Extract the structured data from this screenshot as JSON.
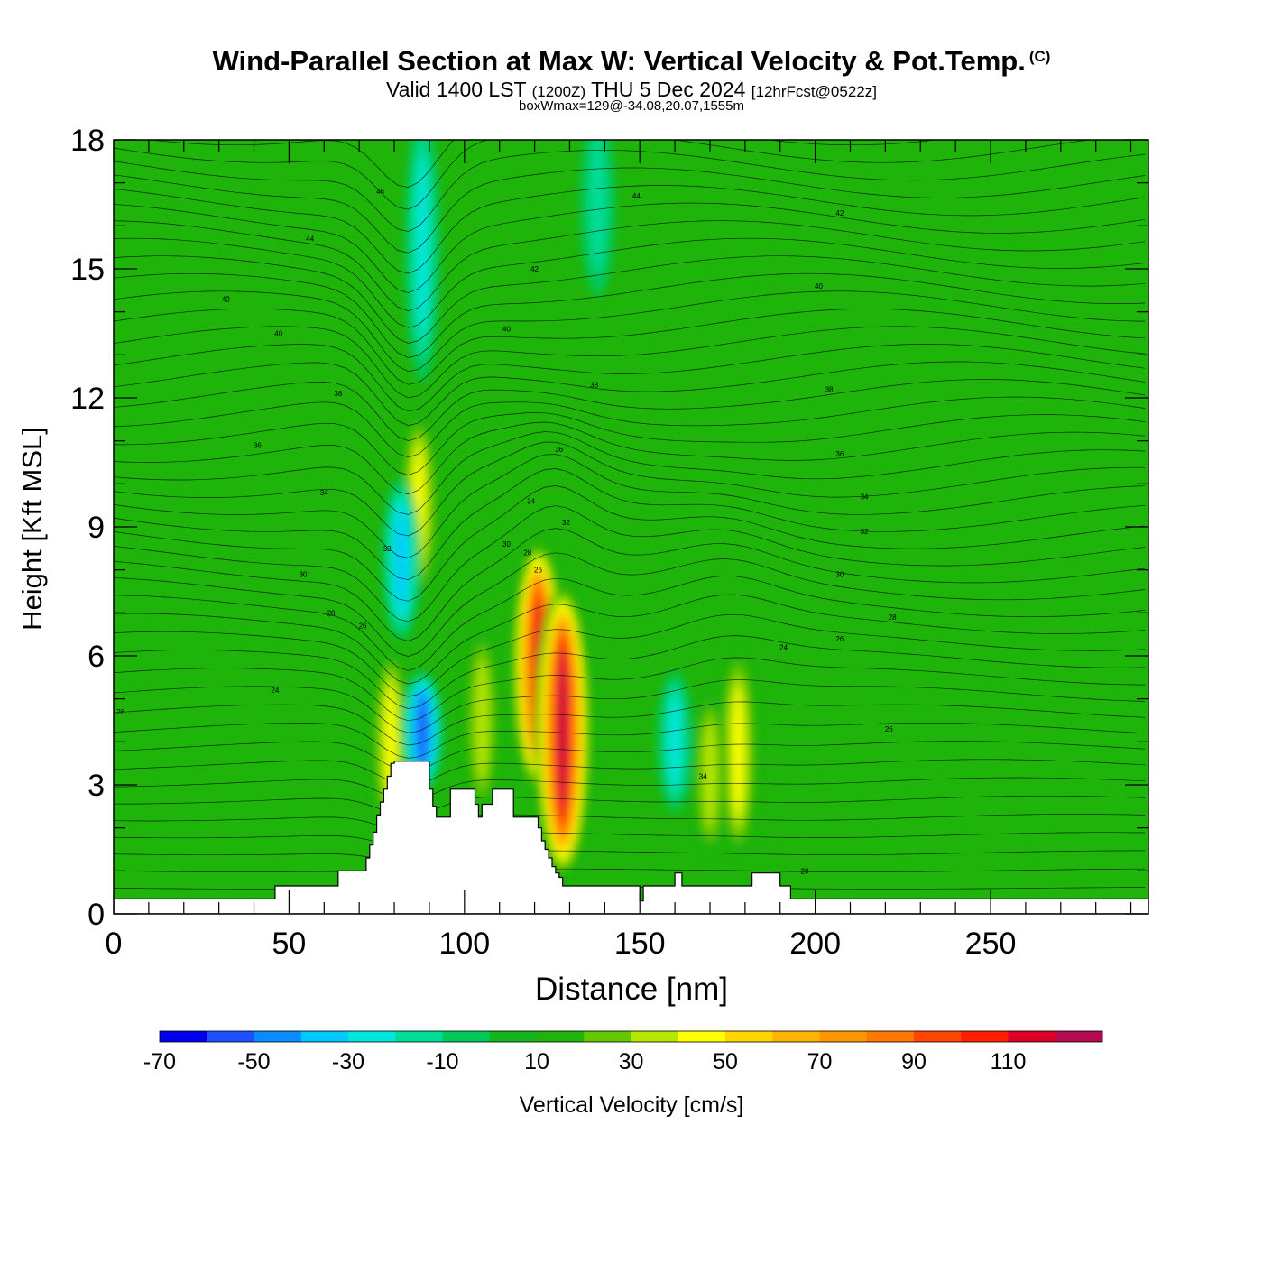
{
  "header": {
    "title": "Wind-Parallel Section at Max W: Vertical Velocity & Pot.Temp.",
    "copyright_mark": "(C)",
    "subtitle": {
      "valid": "Valid 1400 LST",
      "utc": "(1200Z)",
      "date": "THU 5 Dec 2024",
      "forecast": "[12hrFcst@0522z]"
    },
    "info": "boxWmax=129@-34.08,20.07,1555m"
  },
  "chart_data": {
    "type": "heatmap",
    "xlabel": "Distance [nm]",
    "ylabel": "Height [Kft MSL]",
    "xlim": [
      0,
      295
    ],
    "ylim": [
      0,
      18
    ],
    "x_ticks": [
      0,
      50,
      100,
      150,
      200,
      250
    ],
    "y_ticks": [
      0,
      3,
      6,
      9,
      12,
      15,
      18
    ],
    "colorbar": {
      "label": "Vertical Velocity [cm/s]",
      "levels": [
        -75,
        -65,
        -55,
        -45,
        -35,
        -25,
        -15,
        -5,
        5,
        15,
        25,
        35,
        45,
        55,
        65,
        75,
        85,
        95,
        105,
        115,
        125
      ],
      "colors": [
        "#0000ee",
        "#1e50ff",
        "#0a8cff",
        "#00c8ff",
        "#00e6dc",
        "#00dc96",
        "#00c85a",
        "#14b41e",
        "#1eb40a",
        "#64c800",
        "#b4e600",
        "#ffff00",
        "#ffd700",
        "#ffb400",
        "#ff9600",
        "#ff7800",
        "#ff4600",
        "#ff1e00",
        "#dc0028",
        "#b40a50"
      ],
      "tick_labels": [
        "-70",
        "-50",
        "-30",
        "-10",
        "10",
        "30",
        "50",
        "70",
        "90",
        "110"
      ]
    },
    "max_w_cm_s": 129,
    "updraft_cores": [
      {
        "x": 121,
        "ylow": 3.5,
        "yhigh": 8.0,
        "peak": 112
      },
      {
        "x": 128,
        "ylow": 1.5,
        "yhigh": 7.0,
        "peak": 129
      },
      {
        "x": 178,
        "ylow": 2.0,
        "yhigh": 5.5,
        "peak": 48
      },
      {
        "x": 170,
        "ylow": 2.0,
        "yhigh": 4.5,
        "peak": 38
      },
      {
        "x": 79,
        "ylow": 2.5,
        "yhigh": 5.5,
        "peak": 45
      },
      {
        "x": 87,
        "ylow": 8.0,
        "yhigh": 11.0,
        "peak": 45
      },
      {
        "x": 105,
        "ylow": 3.0,
        "yhigh": 6.0,
        "peak": 35
      }
    ],
    "downdraft_cores": [
      {
        "x": 88,
        "ylow": 3.5,
        "yhigh": 5.0,
        "peak": -62
      },
      {
        "x": 82,
        "ylow": 7.0,
        "yhigh": 9.5,
        "peak": -48
      },
      {
        "x": 160,
        "ylow": 3.0,
        "yhigh": 5.0,
        "peak": -30
      },
      {
        "x": 88,
        "ylow": 13.0,
        "yhigh": 18.0,
        "peak": -30
      },
      {
        "x": 138,
        "ylow": 15.0,
        "yhigh": 18.0,
        "peak": -28
      }
    ],
    "terrain": {
      "x": [
        0,
        45,
        46,
        63,
        64,
        71,
        72,
        73,
        74,
        75,
        76,
        77,
        78,
        79,
        80,
        81,
        82,
        89,
        90,
        91,
        92,
        95,
        96,
        102,
        103,
        104,
        105,
        107,
        108,
        113,
        114,
        120,
        121,
        122,
        123,
        124,
        125,
        126,
        127,
        128,
        130,
        131,
        149,
        150,
        151,
        159,
        160,
        161,
        162,
        181,
        182,
        189,
        190,
        193,
        194,
        295
      ],
      "y": [
        0.35,
        0.35,
        0.65,
        0.65,
        1.0,
        1.0,
        1.3,
        1.6,
        1.9,
        2.3,
        2.6,
        2.9,
        3.2,
        3.5,
        3.55,
        3.55,
        3.55,
        3.55,
        2.9,
        2.5,
        2.25,
        2.25,
        2.9,
        2.9,
        2.55,
        2.25,
        2.55,
        2.55,
        2.9,
        2.9,
        2.25,
        2.25,
        2.0,
        1.7,
        1.5,
        1.3,
        1.1,
        0.95,
        0.85,
        0.65,
        0.65,
        0.65,
        0.65,
        0.3,
        0.65,
        0.65,
        0.95,
        0.95,
        0.65,
        0.65,
        0.95,
        0.95,
        0.65,
        0.35,
        0.35,
        0.35
      ]
    },
    "theta_contour_labels": [
      {
        "text": "26",
        "x": 2,
        "y": 4.7
      },
      {
        "text": "24",
        "x": 46,
        "y": 5.2
      },
      {
        "text": "26",
        "x": 71,
        "y": 6.7
      },
      {
        "text": "28",
        "x": 62,
        "y": 7.0
      },
      {
        "text": "30",
        "x": 54,
        "y": 7.9
      },
      {
        "text": "32",
        "x": 78,
        "y": 8.5
      },
      {
        "text": "34",
        "x": 60,
        "y": 9.8
      },
      {
        "text": "36",
        "x": 41,
        "y": 10.9
      },
      {
        "text": "38",
        "x": 64,
        "y": 12.1
      },
      {
        "text": "40",
        "x": 47,
        "y": 13.5
      },
      {
        "text": "42",
        "x": 32,
        "y": 14.3
      },
      {
        "text": "44",
        "x": 56,
        "y": 15.7
      },
      {
        "text": "46",
        "x": 76,
        "y": 16.8
      },
      {
        "text": "30",
        "x": 112,
        "y": 8.6
      },
      {
        "text": "28",
        "x": 118,
        "y": 8.4
      },
      {
        "text": "26",
        "x": 121,
        "y": 8.0
      },
      {
        "text": "32",
        "x": 129,
        "y": 9.1
      },
      {
        "text": "34",
        "x": 119,
        "y": 9.6
      },
      {
        "text": "36",
        "x": 127,
        "y": 10.8
      },
      {
        "text": "38",
        "x": 137,
        "y": 12.3
      },
      {
        "text": "40",
        "x": 112,
        "y": 13.6
      },
      {
        "text": "42",
        "x": 120,
        "y": 15.0
      },
      {
        "text": "44",
        "x": 149,
        "y": 16.7
      },
      {
        "text": "34",
        "x": 168,
        "y": 3.2
      },
      {
        "text": "24",
        "x": 191,
        "y": 6.2
      },
      {
        "text": "26",
        "x": 207,
        "y": 6.4
      },
      {
        "text": "28",
        "x": 222,
        "y": 6.9
      },
      {
        "text": "30",
        "x": 207,
        "y": 7.9
      },
      {
        "text": "32",
        "x": 214,
        "y": 8.9
      },
      {
        "text": "34",
        "x": 214,
        "y": 9.7
      },
      {
        "text": "36",
        "x": 207,
        "y": 10.7
      },
      {
        "text": "38",
        "x": 204,
        "y": 12.2
      },
      {
        "text": "40",
        "x": 201,
        "y": 14.6
      },
      {
        "text": "42",
        "x": 207,
        "y": 16.3
      },
      {
        "text": "26",
        "x": 221,
        "y": 4.3
      },
      {
        "text": "28",
        "x": 197,
        "y": 1.0
      }
    ]
  }
}
